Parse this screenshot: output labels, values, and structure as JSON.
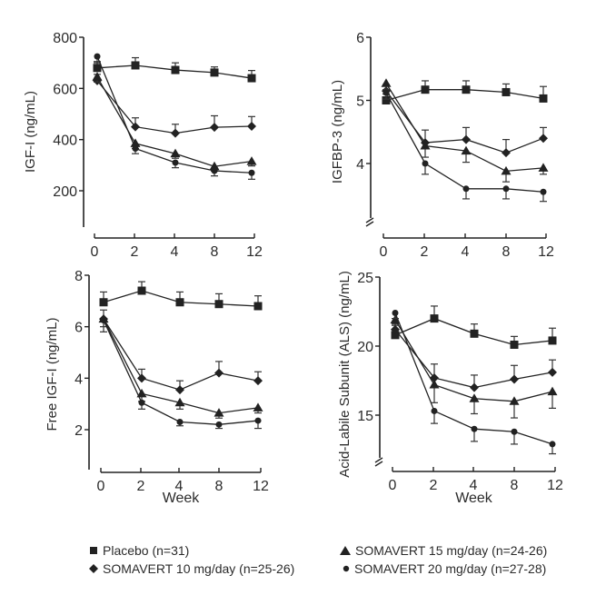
{
  "chart_data": [
    {
      "type": "line",
      "title": "",
      "xlabel": "",
      "ylabel": "IGF-I (ng/mL)",
      "x": [
        0,
        2,
        4,
        8,
        12
      ],
      "x_tick_labels": [
        "0",
        "2",
        "4",
        "8",
        "12"
      ],
      "y_ticks": [
        200,
        400,
        600,
        800
      ],
      "y_tick_labels": [
        "200",
        "400",
        "600",
        "800"
      ],
      "ylim": [
        50,
        800
      ],
      "axis_break": false,
      "grid": false,
      "series": [
        {
          "name": "Placebo (n=31)",
          "marker": "square",
          "values": [
            680,
            690,
            672,
            662,
            640
          ],
          "error": [
            25,
            30,
            28,
            22,
            30
          ],
          "error_dir": "up"
        },
        {
          "name": "SOMAVERT 10 mg/day (n=25-26)",
          "marker": "diamond",
          "values": [
            630,
            450,
            425,
            448,
            452
          ],
          "error": [
            25,
            35,
            35,
            45,
            38
          ],
          "error_dir": "up"
        },
        {
          "name": "SOMAVERT 15 mg/day (n=24-26)",
          "marker": "triangle",
          "values": [
            645,
            385,
            345,
            295,
            315
          ],
          "error": [
            20,
            20,
            18,
            18,
            18
          ],
          "error_dir": "down"
        },
        {
          "name": "SOMAVERT 20 mg/day (n=27-28)",
          "marker": "circle",
          "values": [
            725,
            365,
            310,
            278,
            270
          ],
          "error": [
            25,
            20,
            20,
            20,
            25
          ],
          "error_dir": "down"
        }
      ]
    },
    {
      "type": "line",
      "title": "",
      "xlabel": "",
      "ylabel": "IGFBP-3 (ng/mL)",
      "x": [
        0,
        2,
        4,
        8,
        12
      ],
      "x_tick_labels": [
        "0",
        "2",
        "4",
        "8",
        "12"
      ],
      "y_ticks": [
        4,
        5,
        6
      ],
      "y_tick_labels": [
        "4",
        "5",
        "6"
      ],
      "ylim": [
        3.0,
        6.0
      ],
      "axis_break": true,
      "grid": false,
      "series": [
        {
          "name": "Placebo (n=31)",
          "marker": "square",
          "values": [
            5.0,
            5.17,
            5.17,
            5.13,
            5.03
          ],
          "error": [
            0.1,
            0.14,
            0.14,
            0.13,
            0.19
          ],
          "error_dir": "up"
        },
        {
          "name": "SOMAVERT 10 mg/day (n=25-26)",
          "marker": "diamond",
          "values": [
            5.15,
            4.33,
            4.38,
            4.17,
            4.4
          ],
          "error": [
            0.1,
            0.2,
            0.19,
            0.21,
            0.17
          ],
          "error_dir": "up"
        },
        {
          "name": "SOMAVERT 15 mg/day (n=24-26)",
          "marker": "triangle",
          "values": [
            5.27,
            4.28,
            4.2,
            3.88,
            3.93
          ],
          "error": [
            0.1,
            0.18,
            0.18,
            0.17,
            0.1
          ],
          "error_dir": "down"
        },
        {
          "name": "SOMAVERT 20 mg/day (n=27-28)",
          "marker": "circle",
          "values": [
            5.12,
            4.0,
            3.6,
            3.6,
            3.55
          ],
          "error": [
            0.1,
            0.17,
            0.16,
            0.16,
            0.15
          ],
          "error_dir": "down"
        }
      ]
    },
    {
      "type": "line",
      "title": "",
      "xlabel": "Week",
      "ylabel": "Free IGF-I (ng/mL)",
      "x": [
        0,
        2,
        4,
        8,
        12
      ],
      "x_tick_labels": [
        "0",
        "2",
        "4",
        "8",
        "12"
      ],
      "y_ticks": [
        2,
        4,
        6,
        8
      ],
      "y_tick_labels": [
        "2",
        "4",
        "6",
        "8"
      ],
      "ylim": [
        0.4,
        8
      ],
      "axis_break": false,
      "grid": false,
      "series": [
        {
          "name": "Placebo (n=31)",
          "marker": "square",
          "values": [
            6.95,
            7.4,
            6.95,
            6.88,
            6.8
          ],
          "error": [
            0.4,
            0.35,
            0.4,
            0.4,
            0.4
          ],
          "error_dir": "up"
        },
        {
          "name": "SOMAVERT 10 mg/day (n=25-26)",
          "marker": "diamond",
          "values": [
            6.3,
            4.0,
            3.55,
            4.2,
            3.9
          ],
          "error": [
            0.35,
            0.35,
            0.35,
            0.45,
            0.35
          ],
          "error_dir": "up"
        },
        {
          "name": "SOMAVERT 15 mg/day (n=24-26)",
          "marker": "triangle",
          "values": [
            6.3,
            3.4,
            3.05,
            2.65,
            2.85
          ],
          "error": [
            0.3,
            0.3,
            0.25,
            0.2,
            0.2
          ],
          "error_dir": "down"
        },
        {
          "name": "SOMAVERT 20 mg/day (n=27-28)",
          "marker": "circle",
          "values": [
            6.25,
            3.05,
            2.3,
            2.2,
            2.35
          ],
          "error": [
            0.45,
            0.25,
            0.15,
            0.15,
            0.3
          ],
          "error_dir": "down"
        }
      ]
    },
    {
      "type": "line",
      "title": "",
      "xlabel": "Week",
      "ylabel": "Acid-Labile Subunit (ALS) (ng/mL)",
      "x": [
        0,
        2,
        4,
        8,
        12
      ],
      "x_tick_labels": [
        "0",
        "2",
        "4",
        "8",
        "12"
      ],
      "y_ticks": [
        15,
        20,
        25
      ],
      "y_tick_labels": [
        "15",
        "20",
        "25"
      ],
      "ylim": [
        11.5,
        25
      ],
      "axis_break": true,
      "grid": false,
      "series": [
        {
          "name": "Placebo (n=31)",
          "marker": "square",
          "values": [
            20.8,
            22.0,
            20.9,
            20.1,
            20.4
          ],
          "error": [
            0.4,
            0.9,
            0.7,
            0.6,
            0.9
          ],
          "error_dir": "up"
        },
        {
          "name": "SOMAVERT 10 mg/day (n=25-26)",
          "marker": "diamond",
          "values": [
            21.2,
            17.7,
            17.0,
            17.6,
            18.1
          ],
          "error": [
            0.4,
            1.0,
            0.9,
            1.0,
            0.9
          ],
          "error_dir": "up"
        },
        {
          "name": "SOMAVERT 15 mg/day (n=24-26)",
          "marker": "triangle",
          "values": [
            21.9,
            17.2,
            16.2,
            16.0,
            16.7
          ],
          "error": [
            0.4,
            1.3,
            1.1,
            1.2,
            1.2
          ],
          "error_dir": "down"
        },
        {
          "name": "SOMAVERT 20 mg/day (n=27-28)",
          "marker": "circle",
          "values": [
            22.4,
            15.3,
            14.0,
            13.8,
            12.9
          ],
          "error": [
            0.4,
            0.9,
            0.9,
            0.9,
            0.7
          ],
          "error_dir": "down"
        }
      ]
    }
  ],
  "legend": {
    "placement": "bottom",
    "items": [
      {
        "marker": "square",
        "label": "Placebo (n=31)"
      },
      {
        "marker": "triangle",
        "label": "SOMAVERT 15 mg/day (n=24-26)"
      },
      {
        "marker": "diamond",
        "label": "SOMAVERT 10 mg/day (n=25-26)"
      },
      {
        "marker": "circle",
        "label": "SOMAVERT 20 mg/day (n=27-28)"
      }
    ]
  },
  "colors": {
    "ink": "#222222",
    "error_bar": "#333333"
  }
}
